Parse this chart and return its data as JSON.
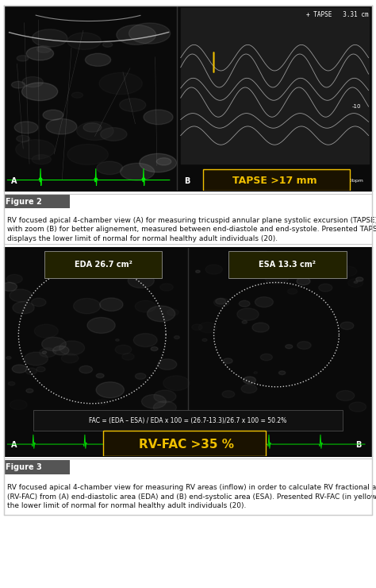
{
  "fig_width": 4.74,
  "fig_height": 7.4,
  "dpi": 100,
  "bg_color": "#ffffff",
  "panel_bg": "#1a1a1a",
  "us_bg_dark": "#0d0d0d",
  "figure2_label": "Figure 2",
  "figure2_caption": "RV focused apical 4-chamber view (A) for measuring tricuspid annular plane systolic excursion (TAPSE) by M-mode\nwith zoom (B) for better alignement, measured between end-diastole and end-systole. Presented TAPSE (in yellow)\ndisplays the lower limit of normal for normal healthy adult individuals (20).",
  "figure3_label": "Figure 3",
  "figure3_caption": "RV focused apical 4-chamber view for measuring RV areas (inflow) in order to calculate RV fractional area change\n(RV-FAC) from (A) end-diastolic area (EDA) and (B) end-systolic area (ESA). Presented RV-FAC (in yellow) displays\nthe lower limit of normal for normal healthy adult individuals (20).",
  "tapse_label": "TAPSE >17 mm",
  "tapse_color": "#f0c000",
  "tapse_box_color": "#1a1200",
  "rvfac_label": "RV-FAC >35 %",
  "rvfac_color": "#f0c000",
  "rvfac_box_color": "#1a1200",
  "fac_formula": "FAC = (EDA – ESA) / EDA x 100 = (26.7-13.3)/26.7 x 100 = 50.2%",
  "eda_label": "EDA 26.7 cm²",
  "esa_label": "ESA 13.3 cm²",
  "tapse_value": "+ TAPSE   3.31 cm",
  "border_color": "#cccccc",
  "figure_label_color": "#ffffff",
  "figure_label_bg": "#444444",
  "caption_fontsize": 6.5,
  "label_fontsize": 7.5,
  "figure_label_fontsize": 7.0
}
